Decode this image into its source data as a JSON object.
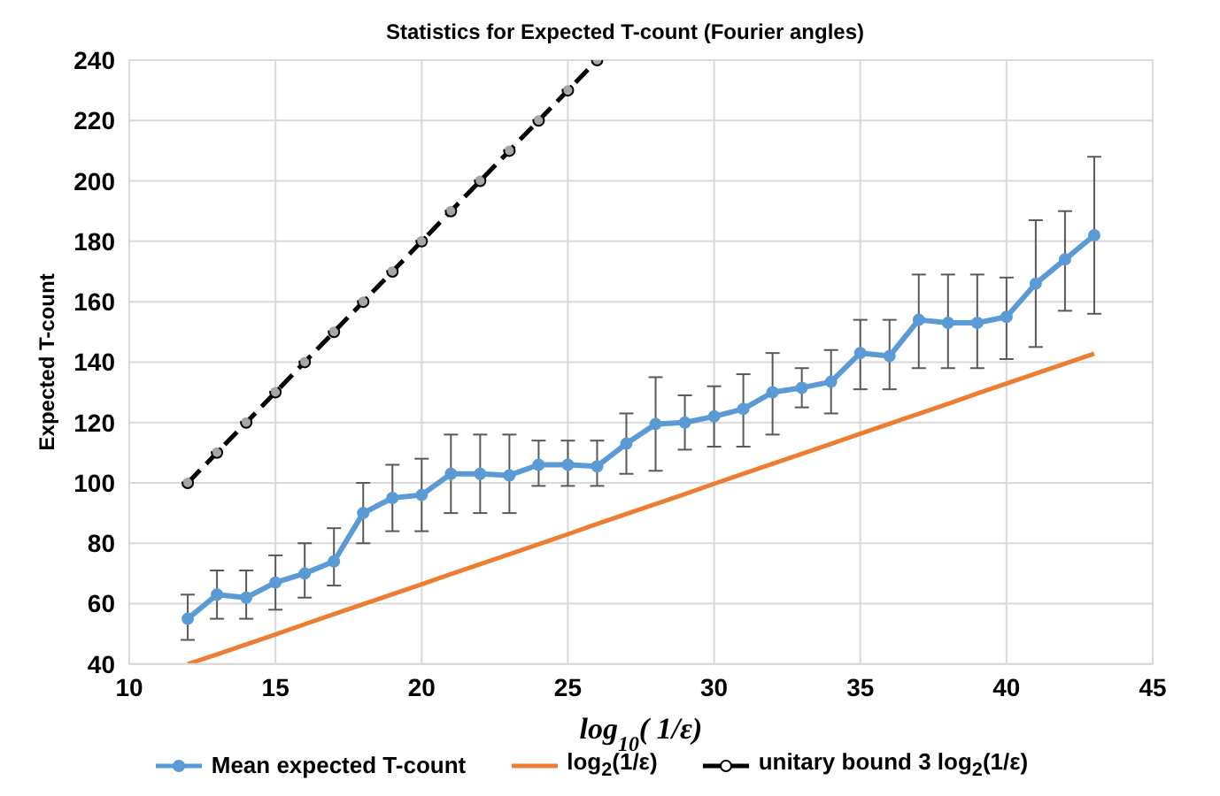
{
  "chart_data": {
    "type": "line",
    "title": "Statistics for Expected T-count (Fourier angles)",
    "xlabel": "log$_{10}$( 1/ε)",
    "ylabel": "Expected T-count",
    "xlim": [
      10,
      45
    ],
    "xticks": [
      10,
      15,
      20,
      25,
      30,
      35,
      40,
      45
    ],
    "ylim": [
      40,
      240
    ],
    "yticks": [
      40,
      60,
      80,
      100,
      120,
      140,
      160,
      180,
      200,
      220,
      240
    ],
    "grid": true,
    "legend": "bottom",
    "series": [
      {
        "name": "Mean expected T-count",
        "color": "#5b9bd5",
        "marker": "circle",
        "line_style": "solid",
        "x": [
          12,
          13,
          14,
          15,
          16,
          17,
          18,
          19,
          20,
          21,
          22,
          23,
          24,
          25,
          26,
          27,
          28,
          29,
          30,
          31,
          32,
          33,
          34,
          35,
          36,
          37,
          38,
          39,
          40,
          41,
          42,
          43
        ],
        "values": [
          55,
          63,
          62,
          67,
          70,
          74,
          90,
          95,
          96,
          103,
          103,
          102.5,
          106,
          106,
          105.5,
          113,
          119.5,
          120,
          122,
          124.5,
          130,
          131.5,
          133.5,
          143,
          142,
          154,
          153,
          153,
          155,
          166,
          174,
          182
        ],
        "errors": [
          [
            48,
            63
          ],
          [
            55,
            71
          ],
          [
            55,
            71
          ],
          [
            58,
            76
          ],
          [
            62,
            80
          ],
          [
            66,
            85
          ],
          [
            80,
            100
          ],
          [
            84,
            106
          ],
          [
            84,
            108
          ],
          [
            90,
            116
          ],
          [
            90,
            116
          ],
          [
            90,
            116
          ],
          [
            99,
            114
          ],
          [
            99,
            114
          ],
          [
            99,
            114
          ],
          [
            103,
            123
          ],
          [
            104,
            135
          ],
          [
            111,
            129
          ],
          [
            112,
            132
          ],
          [
            112,
            136
          ],
          [
            116,
            143
          ],
          [
            125,
            138
          ],
          [
            123,
            144
          ],
          [
            131,
            154
          ],
          [
            131,
            154
          ],
          [
            138,
            169
          ],
          [
            138,
            169
          ],
          [
            138,
            169
          ],
          [
            141,
            168
          ],
          [
            145,
            187
          ],
          [
            157,
            190
          ],
          [
            156,
            208
          ]
        ]
      },
      {
        "name": "log$_{2}$(1/ε)",
        "color": "#ed7d31",
        "marker": "none",
        "line_style": "solid",
        "x": [
          12,
          13,
          14,
          15,
          16,
          17,
          18,
          19,
          20,
          21,
          22,
          23,
          24,
          25,
          26,
          27,
          28,
          29,
          30,
          31,
          32,
          33,
          34,
          35,
          36,
          37,
          38,
          39,
          40,
          41,
          42,
          43
        ],
        "values": [
          40,
          43.2,
          46.5,
          49.8,
          53.2,
          56.5,
          59.8,
          63.1,
          66.4,
          69.8,
          73.1,
          76.4,
          79.7,
          83,
          86.4,
          89.7,
          93,
          96.3,
          99.7,
          103,
          106.3,
          109.6,
          112.9,
          116.3,
          119.6,
          122.9,
          126.2,
          129.6,
          132.9,
          136.2,
          139.5,
          142.8
        ]
      },
      {
        "name": "unitary bound  3 log$_{2}$(1/ε)",
        "color": "#000000",
        "marker": "circle",
        "line_style": "dashed",
        "x": [
          12,
          13,
          14,
          15,
          16,
          17,
          18,
          19,
          20,
          21,
          22,
          23,
          24,
          25,
          26
        ],
        "values": [
          100,
          110,
          120,
          130,
          140,
          150,
          160,
          170,
          180,
          190,
          200,
          210,
          220,
          230,
          240
        ]
      }
    ]
  }
}
